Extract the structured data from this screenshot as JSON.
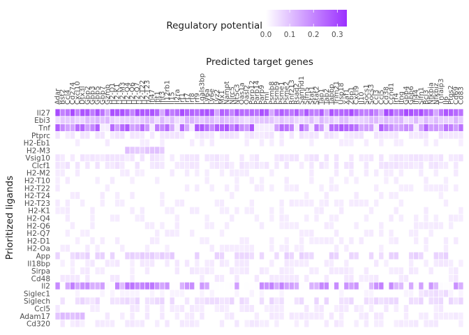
{
  "chart_data": {
    "type": "heatmap",
    "title": "Predicted target genes",
    "xlabel": "Predicted target genes",
    "ylabel": "Prioritized ligands",
    "legend": {
      "title": "Regulatory potential",
      "ticks": [
        "0.0",
        "0.1",
        "0.2",
        "0.3"
      ],
      "tick_values": [
        0,
        0.1,
        0.2,
        0.3
      ],
      "range": [
        0,
        0.34
      ],
      "color_low": "#ffffff",
      "color_high": "#9b30ff",
      "placement": "top"
    },
    "grid": false,
    "ligands": [
      "Il27",
      "Ebi3",
      "Tnf",
      "Ptprc",
      "H2-Eb1",
      "H2-M3",
      "Vsig10",
      "Clcf1",
      "H2-M2",
      "H2-T10",
      "H2-T22",
      "H2-T24",
      "H2-T23",
      "H2-K1",
      "H2-Q4",
      "H2-Q6",
      "H2-Q7",
      "H2-D1",
      "H2-Oa",
      "App",
      "Il18bp",
      "Sirpa",
      "Cd48",
      "Il2",
      "Siglec1",
      "Siglech",
      "Ccl5",
      "Adam17",
      "Cd320"
    ],
    "targets": [
      "Adar",
      "Bst2",
      "Ccl4",
      "Cd274",
      "Cxcl10",
      "Dtx3l",
      "Gbp2",
      "Gbp3",
      "Gbp5",
      "Gbp7",
      "Gzmb",
      "H2-D1",
      "H2-K1",
      "H2-M3",
      "H2-Q4",
      "H2-Q6",
      "H2-Q7",
      "H2-T22",
      "H2-T23",
      "Ifi47",
      "Ifit1",
      "Ifit3",
      "Il12rb1",
      "Il15",
      "Il2ra",
      "Irf1",
      "Irf7",
      "Irf8",
      "Irf9",
      "Lgals3bp",
      "Ly6a",
      "Ly6e",
      "Lyz2",
      "Mx1",
      "Nampt",
      "Nlrc5",
      "Nt5c3",
      "Oas1a",
      "Oasl2",
      "Parp12",
      "Parp14",
      "Parp9",
      "Pml",
      "Psmb8",
      "Psmb9",
      "Psme1",
      "Psme2",
      "Rnf213",
      "Rsad2",
      "Samhd1",
      "Slfn5",
      "Stat1",
      "Stat2",
      "Tap1",
      "Tap2",
      "Tapbp",
      "Trim21",
      "Usp18",
      "Xaf1",
      "Zbp1",
      "Cxcl9",
      "Il10",
      "Socs1",
      "Socs3",
      "Ccl3",
      "Ccl5",
      "Cd38",
      "Ccnd1",
      "Irf4",
      "Ifng",
      "Gbp4",
      "Gbp6",
      "Ifi44",
      "Slfn1",
      "Bcl3",
      "Nfkbia",
      "Nfkbiz",
      "Tnfaip3",
      "Il6",
      "Ptgs2",
      "Cd69",
      "Cd83"
    ],
    "values_note": "rows follow ligands, columns follow targets",
    "values": []
  }
}
